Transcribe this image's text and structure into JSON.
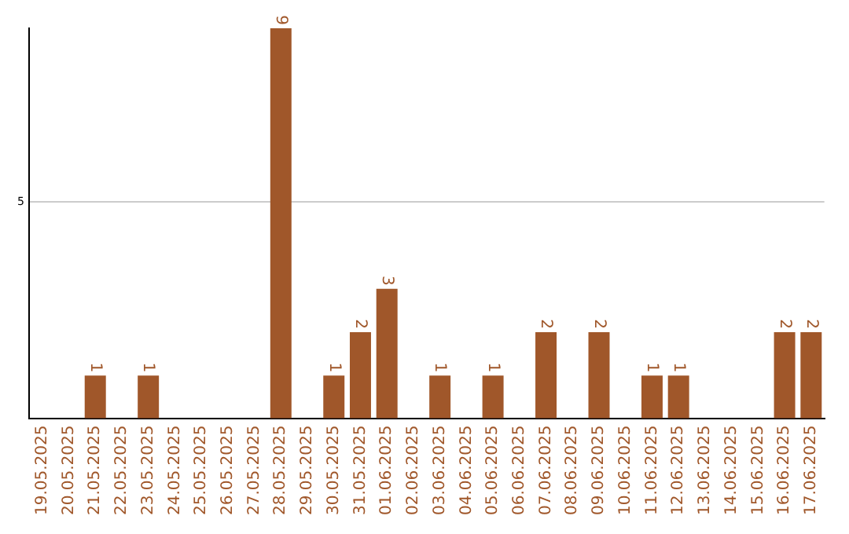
{
  "chart_data": {
    "type": "bar",
    "categories": [
      "19.05.2025",
      "20.05.2025",
      "21.05.2025",
      "22.05.2025",
      "23.05.2025",
      "24.05.2025",
      "25.05.2025",
      "26.05.2025",
      "27.05.2025",
      "28.05.2025",
      "29.05.2025",
      "30.05.2025",
      "31.05.2025",
      "01.06.2025",
      "02.06.2025",
      "03.06.2025",
      "04.06.2025",
      "05.06.2025",
      "06.06.2025",
      "07.06.2025",
      "08.06.2025",
      "09.06.2025",
      "10.06.2025",
      "11.06.2025",
      "12.06.2025",
      "13.06.2025",
      "14.06.2025",
      "15.06.2025",
      "16.06.2025",
      "17.06.2025"
    ],
    "values": [
      0,
      0,
      1,
      0,
      1,
      0,
      0,
      0,
      0,
      9,
      0,
      1,
      2,
      3,
      0,
      1,
      0,
      1,
      0,
      2,
      0,
      2,
      0,
      1,
      1,
      0,
      0,
      0,
      2,
      2
    ],
    "value_labels": [
      null,
      null,
      "1",
      null,
      "1",
      null,
      null,
      null,
      null,
      "9",
      null,
      "1",
      "2",
      "3",
      null,
      "1",
      null,
      "1",
      null,
      "2",
      null,
      "2",
      null,
      "1",
      "1",
      null,
      null,
      null,
      "2",
      "2"
    ],
    "color": "#a0572a",
    "ylim": [
      0,
      9
    ],
    "yticks": [
      {
        "value": 0,
        "label": null
      },
      5
    ],
    "grid": "y"
  }
}
